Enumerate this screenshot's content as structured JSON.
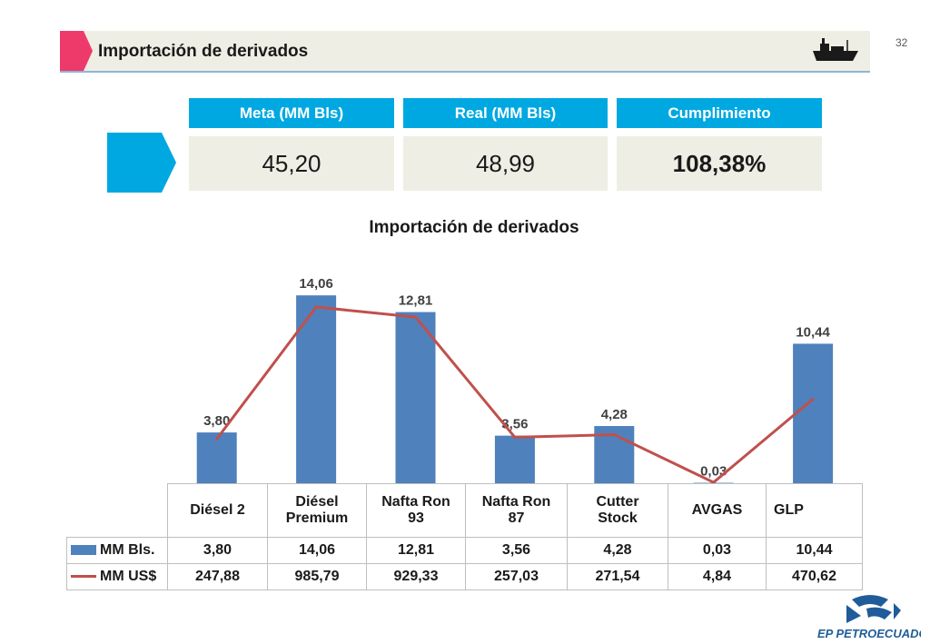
{
  "page": {
    "number": "32",
    "title": "Importación de derivados",
    "accent": "#ee3a6a",
    "brand_blue": "#00a8e1"
  },
  "kpis": {
    "meta": {
      "label": "Meta (MM Bls)",
      "value": "45,20"
    },
    "real": {
      "label": "Real (MM Bls)",
      "value": "48,99"
    },
    "cumplimiento": {
      "label": "Cumplimiento",
      "value": "108,38%"
    }
  },
  "chart_data": {
    "type": "bar",
    "title": "Importación de derivados",
    "categories": [
      "Diésel 2",
      "Diésel Premium",
      "Nafta Ron 93",
      "Nafta Ron 87",
      "Cutter Stock",
      "AVGAS",
      "GLP"
    ],
    "series": [
      {
        "name": "MM Bls.",
        "type": "bar",
        "color": "#4f81bd",
        "values": [
          3.8,
          14.06,
          12.81,
          3.56,
          4.28,
          0.03,
          10.44
        ],
        "labels": [
          "3,80",
          "14,06",
          "12,81",
          "3,56",
          "4,28",
          "0,03",
          "10,44"
        ]
      },
      {
        "name": "MM US$",
        "type": "line",
        "color": "#c0504d",
        "values": [
          247.88,
          985.79,
          929.33,
          257.03,
          271.54,
          4.84,
          470.62
        ],
        "labels": [
          "247,88",
          "985,79",
          "929,33",
          "257,03",
          "271,54",
          "4,84",
          "470,62"
        ]
      }
    ],
    "legend": "bottom-left (data table)",
    "grid": false
  },
  "table": {
    "headers": [
      "Diésel 2",
      "Diésel\nPremium",
      "Nafta Ron\n93",
      "Nafta Ron\n87",
      "Cutter\nStock",
      "AVGAS",
      "GLP"
    ]
  },
  "logo": {
    "text": "EP PETROECUADOR",
    "color": "#1f5c99"
  }
}
